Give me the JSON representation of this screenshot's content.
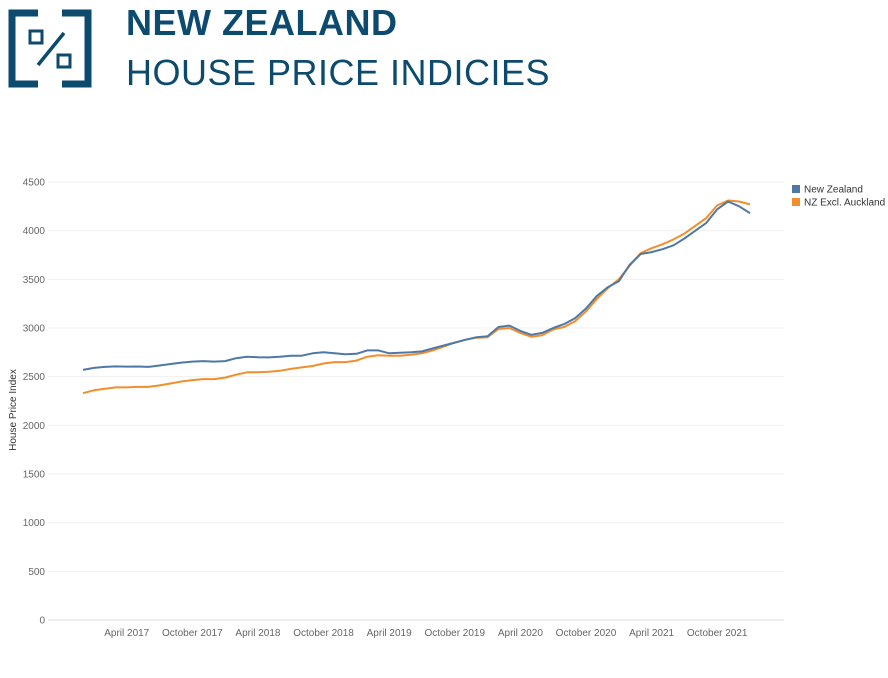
{
  "header": {
    "title": "NEW ZEALAND",
    "subtitle": "HOUSE PRICE INDICIES",
    "logo_icon": "percent-box-icon",
    "brand_color": "#0c4a6e"
  },
  "chart_data": {
    "type": "line",
    "title": "",
    "xlabel": "",
    "ylabel": "House Price Index",
    "ylim": [
      0,
      4500
    ],
    "yticks": [
      0,
      500,
      1000,
      1500,
      2000,
      2500,
      3000,
      3500,
      4000,
      4500
    ],
    "grid": true,
    "legend_position": "top-right",
    "x": [
      "2016-12",
      "2017-01",
      "2017-02",
      "2017-03",
      "2017-04",
      "2017-05",
      "2017-06",
      "2017-07",
      "2017-08",
      "2017-09",
      "2017-10",
      "2017-11",
      "2017-12",
      "2018-01",
      "2018-02",
      "2018-03",
      "2018-04",
      "2018-05",
      "2018-06",
      "2018-07",
      "2018-08",
      "2018-09",
      "2018-10",
      "2018-11",
      "2018-12",
      "2019-01",
      "2019-02",
      "2019-03",
      "2019-04",
      "2019-05",
      "2019-06",
      "2019-07",
      "2019-08",
      "2019-09",
      "2019-10",
      "2019-11",
      "2019-12",
      "2020-01",
      "2020-02",
      "2020-03",
      "2020-04",
      "2020-05",
      "2020-06",
      "2020-07",
      "2020-08",
      "2020-09",
      "2020-10",
      "2020-11",
      "2020-12",
      "2021-01",
      "2021-02",
      "2021-03",
      "2021-04",
      "2021-05",
      "2021-06",
      "2021-07",
      "2021-08",
      "2021-09",
      "2021-10",
      "2021-11",
      "2021-12",
      "2022-01"
    ],
    "x_tick_labels": [
      "April 2017",
      "October 2017",
      "April 2018",
      "October 2018",
      "April 2019",
      "October 2019",
      "April 2020",
      "October 2020",
      "April 2021",
      "October 2021"
    ],
    "x_tick_positions": [
      "2017-04",
      "2017-10",
      "2018-04",
      "2018-10",
      "2019-04",
      "2019-10",
      "2020-04",
      "2020-10",
      "2021-04",
      "2021-10"
    ],
    "series": [
      {
        "name": "New Zealand",
        "color": "#4e79a7",
        "values": [
          2570,
          2590,
          2600,
          2605,
          2603,
          2604,
          2600,
          2615,
          2630,
          2645,
          2655,
          2660,
          2655,
          2660,
          2690,
          2705,
          2700,
          2698,
          2705,
          2715,
          2715,
          2740,
          2750,
          2740,
          2730,
          2735,
          2770,
          2770,
          2740,
          2745,
          2750,
          2760,
          2790,
          2820,
          2850,
          2880,
          2905,
          2915,
          3010,
          3025,
          2970,
          2930,
          2950,
          3000,
          3040,
          3100,
          3200,
          3330,
          3420,
          3480,
          3650,
          3760,
          3780,
          3810,
          3850,
          3920,
          4000,
          4080,
          4220,
          4300,
          4250,
          4180
        ]
      },
      {
        "name": "NZ Excl. Auckland",
        "color": "#f28e2b",
        "values": [
          2330,
          2360,
          2375,
          2390,
          2390,
          2395,
          2395,
          2410,
          2430,
          2450,
          2465,
          2475,
          2475,
          2490,
          2520,
          2545,
          2545,
          2550,
          2560,
          2580,
          2595,
          2610,
          2635,
          2650,
          2650,
          2665,
          2705,
          2720,
          2715,
          2715,
          2725,
          2740,
          2770,
          2810,
          2850,
          2880,
          2900,
          2905,
          2990,
          3000,
          2950,
          2910,
          2925,
          2985,
          3010,
          3070,
          3170,
          3300,
          3410,
          3500,
          3640,
          3770,
          3820,
          3860,
          3910,
          3970,
          4050,
          4130,
          4260,
          4310,
          4300,
          4270
        ]
      }
    ]
  }
}
